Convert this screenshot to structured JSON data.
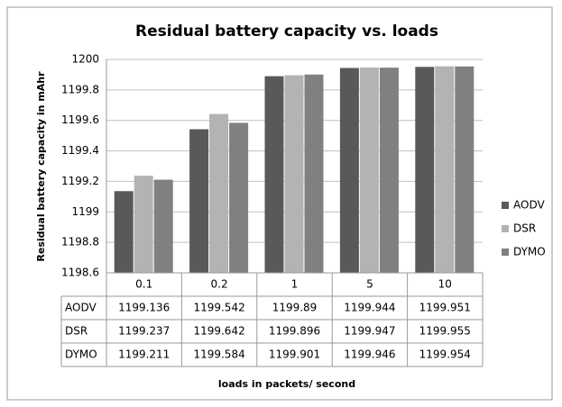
{
  "chart_data": {
    "type": "bar",
    "title": "Residual battery capacity vs.  loads",
    "y_label": "Residual battery capacity in mAhr",
    "x_label": "loads in packets/ second",
    "categories": [
      "0.1",
      "0.2",
      "1",
      "5",
      "10"
    ],
    "series": [
      {
        "name": "AODV",
        "color": "#595959",
        "values": [
          1199.136,
          1199.542,
          1199.89,
          1199.944,
          1199.951
        ]
      },
      {
        "name": "DSR",
        "color": "#b3b3b3",
        "values": [
          1199.237,
          1199.642,
          1199.896,
          1199.947,
          1199.955
        ]
      },
      {
        "name": "DYMO",
        "color": "#808080",
        "values": [
          1199.211,
          1199.584,
          1199.901,
          1199.946,
          1199.954
        ]
      }
    ],
    "ylim": [
      1198.6,
      1200
    ],
    "yticks": [
      1198.6,
      1198.8,
      1199,
      1199.2,
      1199.4,
      1199.6,
      1199.8,
      1200
    ],
    "grid": true,
    "legend": "right",
    "data_table": true
  }
}
